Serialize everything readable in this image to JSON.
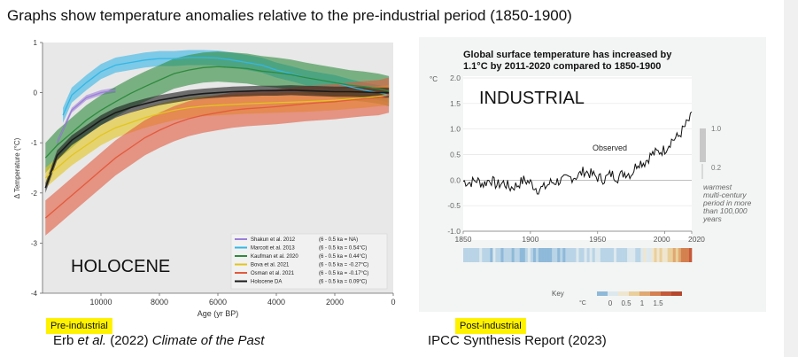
{
  "heading": "Graphs show temperature anomalies relative to the pre-industrial period (1850-1900)",
  "labels": {
    "pre_industrial": "Pre-industrial",
    "post_industrial": "Post-industrial"
  },
  "captions": {
    "left_author": "Erb ",
    "left_etal": "et al.",
    "left_year": " (2022) ",
    "left_journal": "Climate of the Past",
    "right": "IPCC Synthesis Report (2023)"
  },
  "chart_data": [
    {
      "type": "line",
      "overlay_label": "HOLOCENE",
      "xlabel": "Age (yr BP)",
      "ylabel": "Δ Temperature (°C)",
      "xlim": [
        12000,
        0
      ],
      "ylim": [
        -4,
        1
      ],
      "x_ticks": [
        10000,
        8000,
        6000,
        4000,
        2000,
        0
      ],
      "y_ticks": [
        1,
        0,
        -1,
        -2,
        -3,
        -4
      ],
      "grid": false,
      "legend_position": "bottom-right",
      "series": [
        {
          "name": "Shakun et al. 2012",
          "range": "(6 - 0.5 ka = NA)",
          "color": "#9b7fd9",
          "x": [
            11500,
            11000,
            10500,
            10000,
            9500
          ],
          "y": [
            -1.0,
            -0.35,
            -0.1,
            0.0,
            0.05
          ]
        },
        {
          "name": "Marcott et al. 2013",
          "range": "(6 - 0.5 ka = 0.54°C)",
          "color": "#34b6e6",
          "x": [
            11300,
            11000,
            10500,
            10000,
            9500,
            9000,
            8500,
            8000,
            7500,
            7000,
            6500,
            6000,
            5500,
            5000,
            4500,
            4000,
            3500,
            3000,
            2500,
            2000,
            1500,
            1000,
            500,
            150
          ],
          "y": [
            -0.45,
            -0.05,
            0.2,
            0.42,
            0.55,
            0.6,
            0.65,
            0.68,
            0.68,
            0.7,
            0.7,
            0.69,
            0.65,
            0.6,
            0.55,
            0.45,
            0.38,
            0.3,
            0.25,
            0.2,
            0.12,
            0.05,
            0.0,
            -0.05
          ]
        },
        {
          "name": "Kaufman et al. 2020",
          "range": "(6 - 0.5 ka = 0.44°C)",
          "color": "#2e8b3d",
          "x": [
            11900,
            11500,
            11000,
            10500,
            10000,
            9500,
            9000,
            8500,
            8000,
            7500,
            7000,
            6500,
            6000,
            5500,
            5000,
            4500,
            4000,
            3500,
            3000,
            2500,
            2000,
            1500,
            1000,
            500,
            150
          ],
          "y": [
            -1.3,
            -1.05,
            -0.8,
            -0.55,
            -0.35,
            -0.18,
            -0.02,
            0.12,
            0.25,
            0.38,
            0.45,
            0.5,
            0.52,
            0.5,
            0.48,
            0.43,
            0.4,
            0.36,
            0.3,
            0.25,
            0.2,
            0.15,
            0.12,
            0.08,
            0.03
          ]
        },
        {
          "name": "Bova et al. 2021",
          "range": "(6 - 0.5 ka = -0.27°C)",
          "color": "#e3c51f",
          "x": [
            11900,
            11500,
            11000,
            10500,
            10000,
            9500,
            9000,
            8500,
            8000,
            7500,
            7000,
            6500,
            6000,
            5000,
            4000,
            3000,
            2000,
            1000,
            150
          ],
          "y": [
            -1.7,
            -1.5,
            -1.25,
            -1.05,
            -0.85,
            -0.7,
            -0.6,
            -0.5,
            -0.42,
            -0.35,
            -0.3,
            -0.27,
            -0.25,
            -0.22,
            -0.2,
            -0.18,
            -0.15,
            -0.1,
            -0.05
          ]
        },
        {
          "name": "Osman et al. 2021",
          "range": "(6 - 0.5 ka = -0.17°C)",
          "color": "#e35a3d",
          "x": [
            11900,
            11500,
            11000,
            10500,
            10000,
            9500,
            9000,
            8500,
            8000,
            7500,
            7000,
            6500,
            6000,
            5500,
            5000,
            4500,
            4000,
            3500,
            3000,
            2500,
            2000,
            1500,
            1000,
            500,
            150
          ],
          "y": [
            -2.5,
            -2.3,
            -2.05,
            -1.8,
            -1.55,
            -1.3,
            -1.1,
            -0.9,
            -0.75,
            -0.62,
            -0.52,
            -0.45,
            -0.4,
            -0.35,
            -0.32,
            -0.3,
            -0.28,
            -0.25,
            -0.22,
            -0.2,
            -0.18,
            -0.15,
            -0.12,
            -0.1,
            -0.05
          ]
        },
        {
          "name": "Holocene DA",
          "range": "(6 - 0.5 ka = 0.09°C)",
          "color": "#1a1a1a",
          "x": [
            11900,
            11500,
            11000,
            10500,
            10000,
            9500,
            9000,
            8500,
            8000,
            7500,
            7000,
            6500,
            6000,
            5500,
            5000,
            4500,
            4000,
            3500,
            3000,
            2500,
            2000,
            1500,
            1000,
            500,
            150
          ],
          "y": [
            -1.9,
            -1.25,
            -0.95,
            -0.75,
            -0.55,
            -0.4,
            -0.3,
            -0.22,
            -0.15,
            -0.1,
            -0.05,
            -0.02,
            0.0,
            0.02,
            0.03,
            0.04,
            0.04,
            0.05,
            0.04,
            0.03,
            0.02,
            0.02,
            0.01,
            0.0,
            0.0
          ]
        }
      ]
    },
    {
      "type": "line",
      "title": "Global surface temperature has increased by 1.1°C by 2011-2020 compared to 1850-1900",
      "overlay_label": "INDUSTRIAL",
      "unit": "°C",
      "ylim": [
        -1.0,
        2.0
      ],
      "y_ticks": [
        "2.0",
        "1.5",
        "1.0",
        "0.5",
        "0.0",
        "-0.5",
        "-1.0"
      ],
      "xlim": [
        1850,
        2020
      ],
      "x_ticks": [
        1850,
        1900,
        1950,
        2000,
        2020
      ],
      "grid": true,
      "series": [
        {
          "name": "Observed",
          "color": "#111111",
          "x": [
            1850,
            1855,
            1860,
            1865,
            1870,
            1875,
            1880,
            1885,
            1890,
            1895,
            1900,
            1905,
            1910,
            1915,
            1920,
            1925,
            1930,
            1935,
            1940,
            1945,
            1950,
            1955,
            1960,
            1965,
            1970,
            1975,
            1980,
            1985,
            1990,
            1995,
            2000,
            2005,
            2010,
            2015,
            2020
          ],
          "y": [
            -0.02,
            -0.05,
            0.0,
            -0.08,
            0.02,
            -0.1,
            -0.05,
            -0.15,
            -0.1,
            0.0,
            -0.05,
            -0.18,
            -0.15,
            -0.05,
            -0.02,
            0.0,
            0.05,
            0.08,
            0.18,
            0.12,
            0.05,
            0.02,
            0.12,
            0.05,
            0.15,
            0.12,
            0.35,
            0.35,
            0.5,
            0.55,
            0.6,
            0.78,
            0.85,
            1.05,
            1.25
          ]
        }
      ],
      "key": {
        "title": "Key",
        "unit": "°C",
        "ticks": [
          "0",
          "0.5",
          "1",
          "1.5"
        ]
      },
      "side_annotation": {
        "top_value": "1.0",
        "bottom_value": "0.2",
        "text": [
          "warmest",
          "multi-century",
          "period in more",
          "than 100,000",
          "years"
        ]
      }
    }
  ]
}
